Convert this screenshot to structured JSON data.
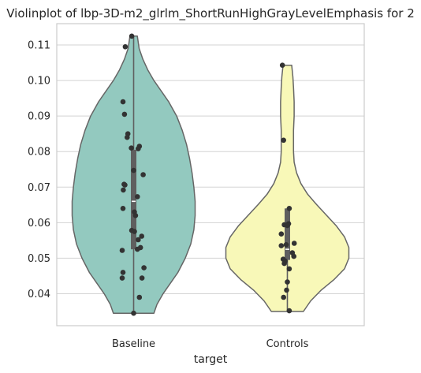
{
  "chart_data": {
    "type": "violin",
    "title": "Violinplot of lbp-3D-m2_glrlm_ShortRunHighGrayLevelEmphasis for 2",
    "xlabel": "target",
    "ylabel": "",
    "ylim": [
      0.031,
      0.116
    ],
    "yticks": [
      0.04,
      0.05,
      0.06,
      0.07,
      0.08,
      0.09,
      0.1,
      0.11
    ],
    "ytick_labels": [
      "0.04",
      "0.05",
      "0.06",
      "0.07",
      "0.08",
      "0.09",
      "0.10",
      "0.11"
    ],
    "grid": true,
    "categories": [
      "Baseline",
      "Controls"
    ],
    "colors": {
      "Baseline": "#93c9bf",
      "Controls": "#f8f8b8",
      "outline": "#666666",
      "box": "#5f5f5f",
      "points": "#333333",
      "grid": "#d3d3d3",
      "frame": "#cccccc"
    },
    "groups": [
      {
        "name": "Baseline",
        "min": 0.0345,
        "max": 0.1125,
        "q1": 0.0525,
        "median": 0.066,
        "q3": 0.0805,
        "whisker_low": 0.0345,
        "whisker_high": 0.1125,
        "density": [
          [
            0.0345,
            0.33
          ],
          [
            0.037,
            0.38
          ],
          [
            0.04,
            0.48
          ],
          [
            0.043,
            0.6
          ],
          [
            0.046,
            0.72
          ],
          [
            0.05,
            0.84
          ],
          [
            0.054,
            0.93
          ],
          [
            0.058,
            0.98
          ],
          [
            0.062,
            1.0
          ],
          [
            0.066,
            1.0
          ],
          [
            0.07,
            0.98
          ],
          [
            0.074,
            0.95
          ],
          [
            0.078,
            0.91
          ],
          [
            0.082,
            0.86
          ],
          [
            0.086,
            0.79
          ],
          [
            0.09,
            0.7
          ],
          [
            0.094,
            0.57
          ],
          [
            0.097,
            0.45
          ],
          [
            0.1,
            0.33
          ],
          [
            0.103,
            0.23
          ],
          [
            0.106,
            0.15
          ],
          [
            0.109,
            0.09
          ],
          [
            0.1125,
            0.06
          ]
        ],
        "points": [
          [
            -0.05,
            0.1125
          ],
          [
            -0.22,
            0.1095
          ],
          [
            -0.28,
            0.094
          ],
          [
            -0.24,
            0.0905
          ],
          [
            -0.15,
            0.085
          ],
          [
            -0.17,
            0.084
          ],
          [
            -0.06,
            0.081
          ],
          [
            0.15,
            0.0815
          ],
          [
            0.12,
            0.0808
          ],
          [
            0.0,
            0.0747
          ],
          [
            0.25,
            0.0735
          ],
          [
            -0.25,
            0.0708
          ],
          [
            -0.23,
            0.0706
          ],
          [
            -0.27,
            0.0692
          ],
          [
            0.1,
            0.0673
          ],
          [
            -0.28,
            0.064
          ],
          [
            0.02,
            0.063
          ],
          [
            0.05,
            0.062
          ],
          [
            -0.05,
            0.0578
          ],
          [
            0.02,
            0.0575
          ],
          [
            0.21,
            0.0562
          ],
          [
            0.12,
            0.0552
          ],
          [
            0.18,
            0.053
          ],
          [
            0.1,
            0.0525
          ],
          [
            -0.3,
            0.0522
          ],
          [
            0.27,
            0.0473
          ],
          [
            -0.28,
            0.046
          ],
          [
            0.22,
            0.0444
          ],
          [
            -0.3,
            0.0444
          ],
          [
            0.15,
            0.039
          ],
          [
            0.0,
            0.0345
          ]
        ]
      },
      {
        "name": "Controls",
        "min": 0.035,
        "max": 0.1043,
        "q1": 0.0495,
        "median": 0.0525,
        "q3": 0.064,
        "whisker_low": 0.035,
        "whisker_high": 0.064,
        "density": [
          [
            0.035,
            0.26
          ],
          [
            0.038,
            0.38
          ],
          [
            0.041,
            0.55
          ],
          [
            0.044,
            0.76
          ],
          [
            0.047,
            0.93
          ],
          [
            0.05,
            1.0
          ],
          [
            0.053,
            1.0
          ],
          [
            0.056,
            0.93
          ],
          [
            0.059,
            0.8
          ],
          [
            0.062,
            0.64
          ],
          [
            0.065,
            0.48
          ],
          [
            0.068,
            0.33
          ],
          [
            0.071,
            0.22
          ],
          [
            0.074,
            0.15
          ],
          [
            0.077,
            0.11
          ],
          [
            0.08,
            0.1
          ],
          [
            0.083,
            0.1
          ],
          [
            0.086,
            0.1
          ],
          [
            0.09,
            0.11
          ],
          [
            0.094,
            0.11
          ],
          [
            0.098,
            0.1
          ],
          [
            0.101,
            0.09
          ],
          [
            0.1043,
            0.07
          ]
        ],
        "points": [
          [
            -0.13,
            0.1043
          ],
          [
            -0.1,
            0.0832
          ],
          [
            0.05,
            0.064
          ],
          [
            0.03,
            0.0597
          ],
          [
            -0.08,
            0.0594
          ],
          [
            0.0,
            0.0592
          ],
          [
            -0.16,
            0.0568
          ],
          [
            0.18,
            0.0542
          ],
          [
            -0.16,
            0.0535
          ],
          [
            -0.03,
            0.0538
          ],
          [
            0.13,
            0.0515
          ],
          [
            0.17,
            0.0505
          ],
          [
            -0.11,
            0.0497
          ],
          [
            -0.06,
            0.0492
          ],
          [
            -0.08,
            0.0485
          ],
          [
            0.05,
            0.047
          ],
          [
            0.0,
            0.0433
          ],
          [
            -0.02,
            0.041
          ],
          [
            -0.1,
            0.039
          ],
          [
            0.05,
            0.0352
          ]
        ]
      }
    ]
  }
}
